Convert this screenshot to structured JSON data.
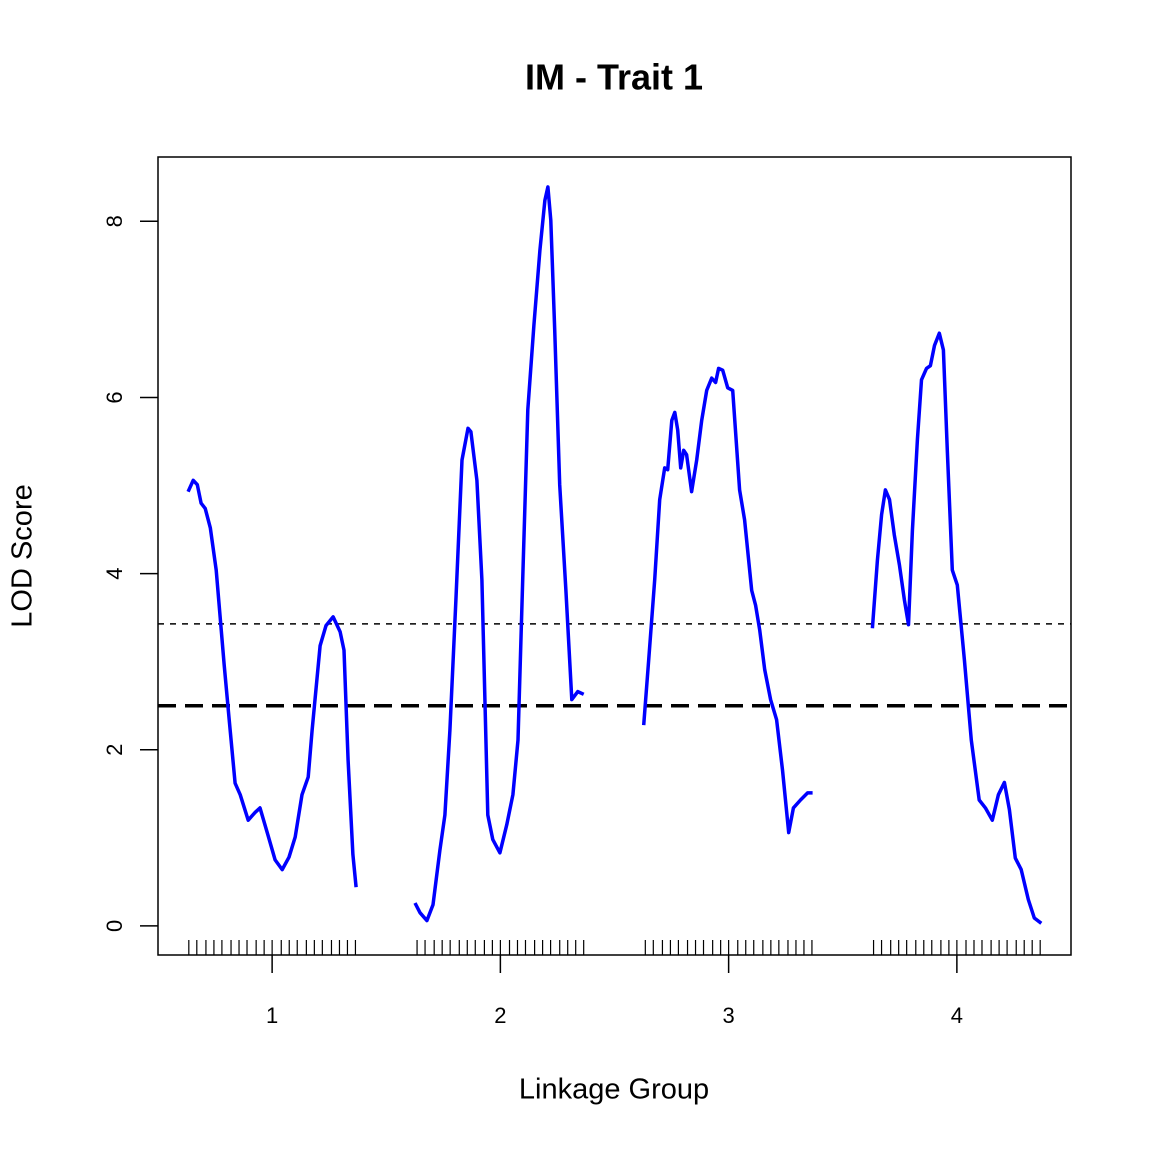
{
  "chart_data": {
    "type": "line",
    "title": "IM - Trait 1",
    "x_label": "Linkage Group",
    "y_label": "LOD Score",
    "xlim": [
      0.5,
      4.5
    ],
    "ylim": [
      -0.33,
      8.73
    ],
    "xticks": [
      1,
      2,
      3,
      4
    ],
    "yticks": [
      0,
      2,
      4,
      6,
      8
    ],
    "hlines": [
      {
        "value": 3.43,
        "color": "#000000",
        "width": 1.5,
        "dash": "6,6"
      },
      {
        "value": 2.5,
        "color": "#000000",
        "width": 3.5,
        "dash": "18,9"
      }
    ],
    "series": [
      {
        "color": "#0000ff",
        "x": [
          0.632,
          0.654,
          0.672,
          0.689,
          0.707,
          0.729,
          0.755,
          0.79,
          0.812,
          0.838,
          0.86,
          0.895,
          0.926,
          0.947,
          0.982,
          1.013,
          1.044,
          1.074,
          1.101,
          1.131,
          1.158,
          1.175,
          1.21,
          1.236,
          1.267,
          1.298,
          1.315,
          1.333,
          1.354,
          1.368
        ],
        "values": [
          4.93,
          5.06,
          5.01,
          4.8,
          4.74,
          4.52,
          4.04,
          2.96,
          2.34,
          1.62,
          1.49,
          1.2,
          1.29,
          1.34,
          1.03,
          0.75,
          0.64,
          0.78,
          1.01,
          1.49,
          1.69,
          2.22,
          3.18,
          3.41,
          3.51,
          3.34,
          3.13,
          1.88,
          0.81,
          0.44
        ],
        "markers": [
          0.635,
          0.67,
          0.71,
          0.745,
          0.78,
          0.82,
          0.855,
          0.89,
          0.93,
          0.965,
          1.0,
          1.04,
          1.075,
          1.11,
          1.15,
          1.185,
          1.22,
          1.26,
          1.295,
          1.33,
          1.365
        ]
      },
      {
        "color": "#0000ff",
        "x": [
          1.626,
          1.648,
          1.678,
          1.705,
          1.735,
          1.757,
          1.779,
          1.805,
          1.832,
          1.858,
          1.871,
          1.897,
          1.919,
          1.945,
          1.967,
          1.998,
          2.028,
          2.055,
          2.077,
          2.098,
          2.12,
          2.147,
          2.173,
          2.195,
          2.208,
          2.221,
          2.238,
          2.26,
          2.287,
          2.313,
          2.339,
          2.365
        ],
        "values": [
          0.26,
          0.15,
          0.06,
          0.24,
          0.86,
          1.26,
          2.22,
          3.7,
          5.29,
          5.65,
          5.61,
          5.06,
          3.93,
          1.26,
          0.98,
          0.83,
          1.15,
          1.49,
          2.11,
          3.93,
          5.86,
          6.82,
          7.67,
          8.24,
          8.39,
          8.01,
          6.77,
          5.01,
          3.81,
          2.57,
          2.66,
          2.63
        ],
        "markers": [
          1.635,
          1.67,
          1.71,
          1.745,
          1.78,
          1.82,
          1.855,
          1.89,
          1.93,
          1.965,
          2.0,
          2.04,
          2.075,
          2.11,
          2.15,
          2.185,
          2.22,
          2.26,
          2.295,
          2.33,
          2.365
        ]
      },
      {
        "color": "#0000ff",
        "x": [
          2.628,
          2.65,
          2.676,
          2.698,
          2.72,
          2.733,
          2.751,
          2.764,
          2.777,
          2.79,
          2.803,
          2.816,
          2.838,
          2.86,
          2.882,
          2.904,
          2.926,
          2.943,
          2.956,
          2.974,
          2.996,
          3.018,
          3.048,
          3.07,
          3.101,
          3.118,
          3.136,
          3.158,
          3.184,
          3.21,
          3.236,
          3.263,
          3.284,
          3.315,
          3.346,
          3.368
        ],
        "values": [
          2.28,
          3.02,
          3.93,
          4.84,
          5.2,
          5.18,
          5.74,
          5.83,
          5.63,
          5.2,
          5.4,
          5.35,
          4.93,
          5.29,
          5.74,
          6.08,
          6.22,
          6.17,
          6.33,
          6.31,
          6.11,
          6.08,
          4.95,
          4.61,
          3.81,
          3.64,
          3.36,
          2.91,
          2.57,
          2.34,
          1.77,
          1.06,
          1.34,
          1.43,
          1.51,
          1.51
        ],
        "markers": [
          2.635,
          2.67,
          2.71,
          2.745,
          2.78,
          2.82,
          2.855,
          2.89,
          2.93,
          2.965,
          3.0,
          3.04,
          3.075,
          3.11,
          3.15,
          3.185,
          3.22,
          3.26,
          3.295,
          3.33,
          3.365
        ]
      },
      {
        "color": "#0000ff",
        "x": [
          3.63,
          3.652,
          3.67,
          3.687,
          3.705,
          3.726,
          3.748,
          3.77,
          3.788,
          3.805,
          3.827,
          3.845,
          3.867,
          3.884,
          3.902,
          3.923,
          3.941,
          3.958,
          3.98,
          4.002,
          4.033,
          4.063,
          4.098,
          4.125,
          4.155,
          4.182,
          4.208,
          4.23,
          4.256,
          4.282,
          4.313,
          4.339,
          4.37
        ],
        "values": [
          3.38,
          4.15,
          4.67,
          4.95,
          4.84,
          4.44,
          4.1,
          3.7,
          3.42,
          4.49,
          5.52,
          6.2,
          6.33,
          6.36,
          6.59,
          6.73,
          6.54,
          5.4,
          4.04,
          3.87,
          3.02,
          2.11,
          1.43,
          1.34,
          1.2,
          1.49,
          1.63,
          1.32,
          0.77,
          0.64,
          0.3,
          0.09,
          0.03
        ],
        "markers": [
          3.635,
          3.67,
          3.71,
          3.745,
          3.78,
          3.82,
          3.855,
          3.89,
          3.93,
          3.965,
          4.0,
          4.04,
          4.075,
          4.11,
          4.15,
          4.185,
          4.22,
          4.26,
          4.295,
          4.33,
          4.365
        ]
      }
    ]
  }
}
